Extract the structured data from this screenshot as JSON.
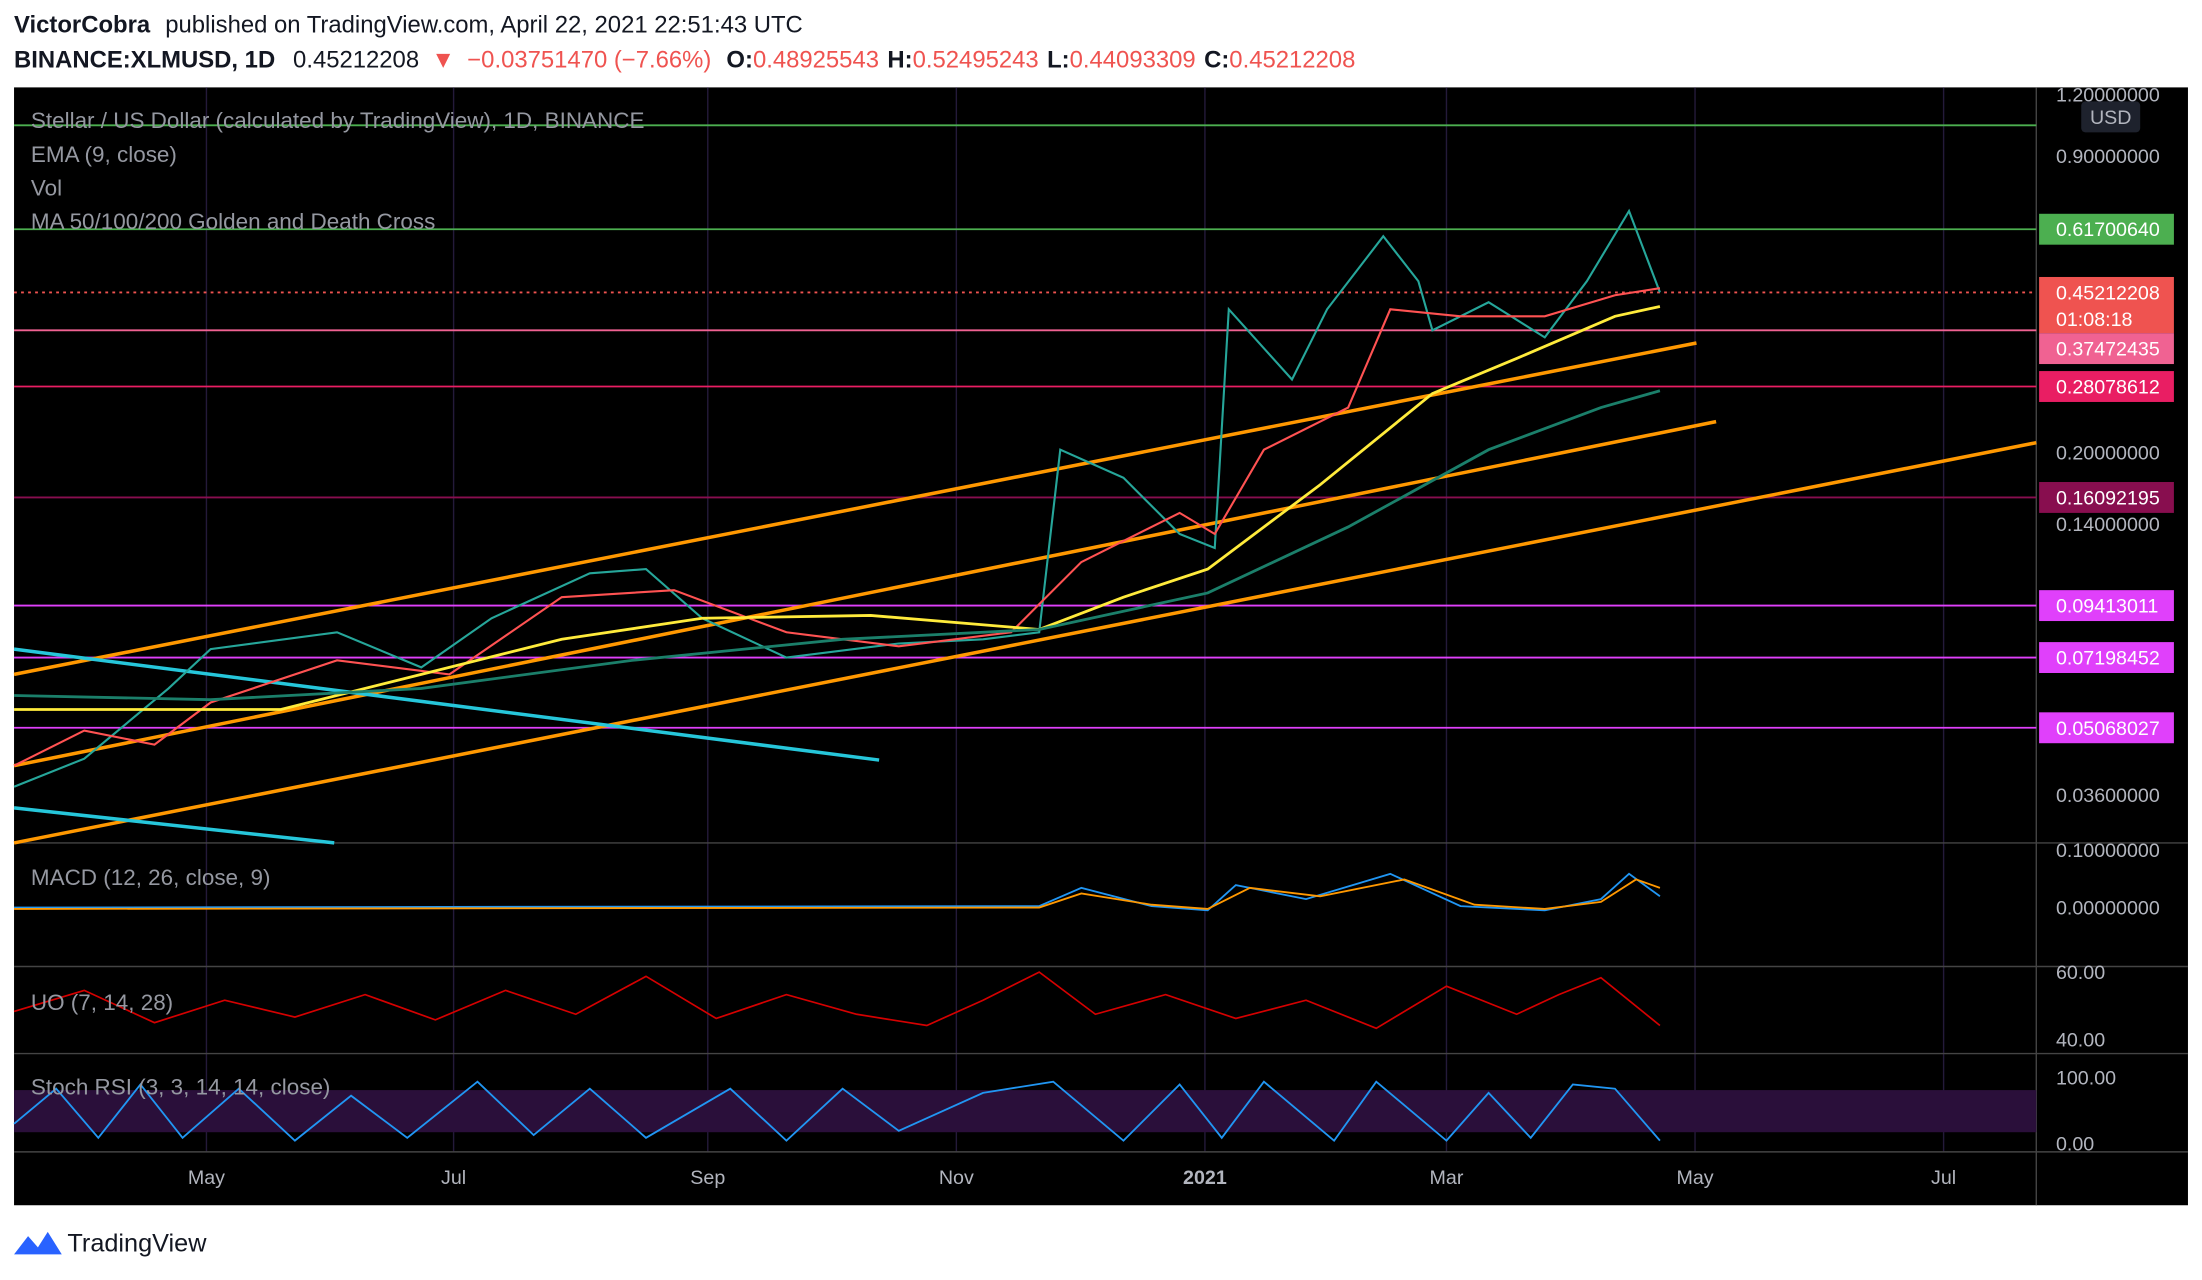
{
  "header": {
    "author": "VictorCobra",
    "published": "published on TradingView.com, April 22, 2021 22:51:43 UTC",
    "symbol": "BINANCE:XLMUSD, 1D",
    "last": "0.45212208",
    "arrow": "▼",
    "change": "−0.03751470 (−7.66%)",
    "ohlc": [
      {
        "label": "O:",
        "value": "0.48925543"
      },
      {
        "label": "H:",
        "value": "0.52495243"
      },
      {
        "label": "L:",
        "value": "0.44093309"
      },
      {
        "label": "C:",
        "value": "0.45212208"
      }
    ]
  },
  "legend": [
    "Stellar / US Dollar (calculated by TradingView), 1D, BINANCE",
    "EMA (9, close)",
    "Vol",
    "MA 50/100/200 Golden and Death Cross"
  ],
  "currency": "USD",
  "price_axis": [
    "1.20000000",
    "0.90000000",
    "0.20000000",
    "0.14000000",
    "0.03600000"
  ],
  "levels": [
    {
      "text": "0.61700640",
      "color": "#4caf50"
    },
    {
      "text": "0.45212208",
      "color": "#ef5350"
    },
    {
      "text": "0.37472435",
      "color": "#f06292"
    },
    {
      "text": "0.28078612",
      "color": "#e91e63"
    },
    {
      "text": "0.16092195",
      "color": "#880e4f"
    },
    {
      "text": "0.09413011",
      "color": "#e040fb"
    },
    {
      "text": "0.07198452",
      "color": "#e040fb"
    },
    {
      "text": "0.05068027",
      "color": "#e040fb"
    }
  ],
  "countdown": "01:08:18",
  "macd": {
    "title": "MACD (12, 26, close, 9)",
    "axis": [
      "0.10000000",
      "0.00000000"
    ]
  },
  "uo": {
    "title": "UO (7, 14, 28)",
    "axis": [
      "60.00",
      "40.00"
    ]
  },
  "stoch": {
    "title": "Stoch RSI (3, 3, 14, 14, close)",
    "axis": [
      "100.00",
      "0.00"
    ]
  },
  "time_axis": [
    "May",
    "Jul",
    "Sep",
    "Nov",
    "2021",
    "Mar",
    "May",
    "Jul"
  ],
  "footer": "TradingView"
}
